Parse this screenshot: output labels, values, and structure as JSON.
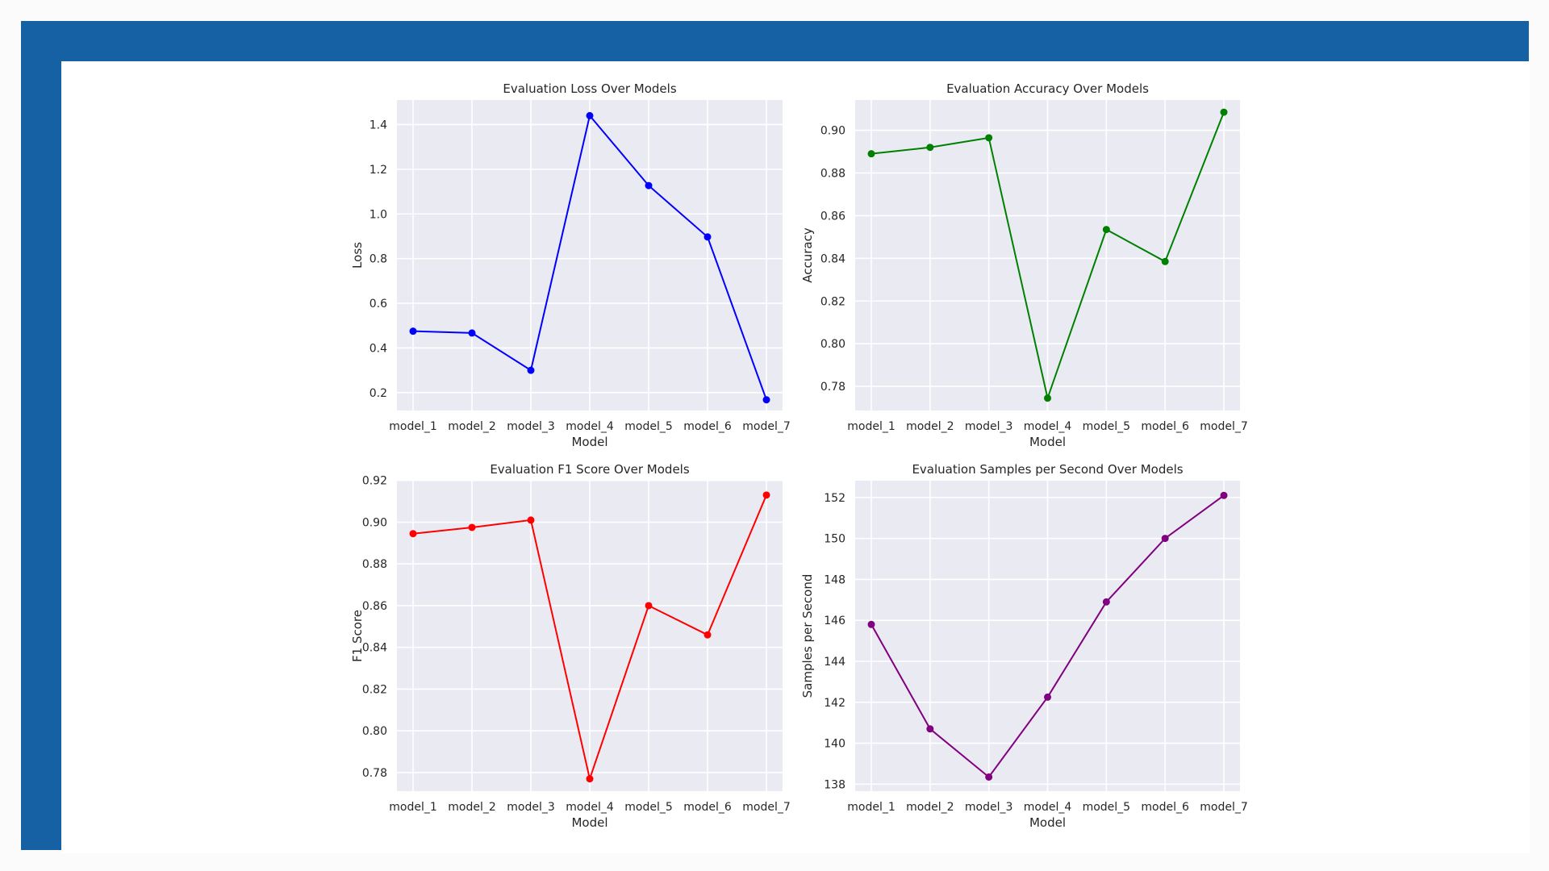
{
  "colors": {
    "frame": "#1660a4",
    "panel_background": "#eaeaf2",
    "gridline": "#ffffff"
  },
  "chart_data": [
    {
      "type": "line",
      "title": "Evaluation Loss Over Models",
      "xlabel": "Model",
      "ylabel": "Loss",
      "categories": [
        "model_1",
        "model_2",
        "model_3",
        "model_4",
        "model_5",
        "model_6",
        "model_7"
      ],
      "series": [
        {
          "color": "blue",
          "marker": "circle",
          "values": [
            0.475,
            0.467,
            0.3,
            1.44,
            1.127,
            0.897,
            0.168
          ]
        }
      ],
      "ylim": [
        0.12,
        1.51
      ],
      "yticks": [
        0.2,
        0.4,
        0.6,
        0.8,
        1.0,
        1.2,
        1.4
      ],
      "ytick_labels": [
        "0.2",
        "0.4",
        "0.6",
        "0.8",
        "1.0",
        "1.2",
        "1.4"
      ],
      "grid": true
    },
    {
      "type": "line",
      "title": "Evaluation Accuracy Over Models",
      "xlabel": "Model",
      "ylabel": "Accuracy",
      "categories": [
        "model_1",
        "model_2",
        "model_3",
        "model_4",
        "model_5",
        "model_6",
        "model_7"
      ],
      "series": [
        {
          "color": "green",
          "marker": "circle",
          "values": [
            0.889,
            0.892,
            0.8965,
            0.7745,
            0.8535,
            0.8385,
            0.9085
          ]
        }
      ],
      "ylim": [
        0.7687,
        0.9142
      ],
      "yticks": [
        0.78,
        0.8,
        0.82,
        0.84,
        0.86,
        0.88,
        0.9
      ],
      "ytick_labels": [
        "0.78",
        "0.80",
        "0.82",
        "0.84",
        "0.86",
        "0.88",
        "0.90"
      ],
      "grid": true
    },
    {
      "type": "line",
      "title": "Evaluation F1 Score Over Models",
      "xlabel": "Model",
      "ylabel": "F1 Score",
      "categories": [
        "model_1",
        "model_2",
        "model_3",
        "model_4",
        "model_5",
        "model_6",
        "model_7"
      ],
      "series": [
        {
          "color": "red",
          "marker": "circle",
          "values": [
            0.8945,
            0.8975,
            0.901,
            0.777,
            0.86,
            0.846,
            0.913
          ]
        }
      ],
      "ylim": [
        0.7711,
        0.9199
      ],
      "yticks": [
        0.78,
        0.8,
        0.82,
        0.84,
        0.86,
        0.88,
        0.9,
        0.92
      ],
      "ytick_labels": [
        "0.78",
        "0.80",
        "0.82",
        "0.84",
        "0.86",
        "0.88",
        "0.90",
        "0.92"
      ],
      "grid": true
    },
    {
      "type": "line",
      "title": "Evaluation Samples per Second Over Models",
      "xlabel": "Model",
      "ylabel": "Samples per Second",
      "categories": [
        "model_1",
        "model_2",
        "model_3",
        "model_4",
        "model_5",
        "model_6",
        "model_7"
      ],
      "series": [
        {
          "color": "purple",
          "marker": "circle",
          "values": [
            145.8,
            140.7,
            138.35,
            142.25,
            146.9,
            150.0,
            152.1
          ]
        }
      ],
      "ylim": [
        137.66,
        152.82
      ],
      "yticks": [
        138,
        140,
        142,
        144,
        146,
        148,
        150,
        152
      ],
      "ytick_labels": [
        "138",
        "140",
        "142",
        "144",
        "146",
        "148",
        "150",
        "152"
      ],
      "grid": true
    }
  ]
}
